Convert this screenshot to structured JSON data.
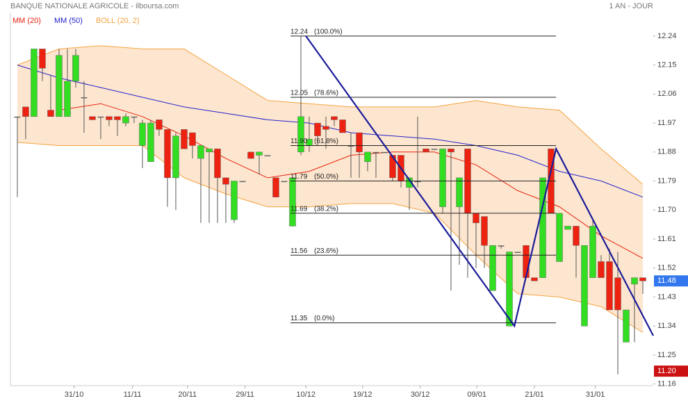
{
  "chart_data": {
    "type": "candlestick",
    "title": "BANQUE NATIONALE AGRICOLE - ilboursa.com",
    "period": "1 AN - JOUR",
    "up_color": "#33dd22",
    "down_color": "#ee2211",
    "xlim": [
      -0.83,
      76.25
    ],
    "ylim": [
      11.155,
      12.313
    ],
    "xticks": [
      {
        "value": 6.8,
        "label": "31/10"
      },
      {
        "value": 13.8,
        "label": "11/11"
      },
      {
        "value": 20.4,
        "label": "20/11"
      },
      {
        "value": 27.3,
        "label": "29/11"
      },
      {
        "value": 34.6,
        "label": "10/12"
      },
      {
        "value": 41.4,
        "label": "19/12"
      },
      {
        "value": 48.3,
        "label": "30/12"
      },
      {
        "value": 55.1,
        "label": "09/01"
      },
      {
        "value": 62,
        "label": "21/01"
      },
      {
        "value": 69.3,
        "label": "31/01"
      }
    ],
    "yticks": [
      12.24,
      12.15,
      12.06,
      11.97,
      11.88,
      11.79,
      {
        "value": 11.7,
        "label": "11.70"
      },
      11.61,
      11.52,
      11.43,
      11.34,
      11.25,
      11.16
    ],
    "open": [
      11.99,
      12.02,
      11.99,
      12.2,
      12.01,
      11.99,
      11.99,
      12.1,
      12.05,
      11.99,
      11.99,
      11.99,
      11.99,
      11.97,
      11.99,
      11.9,
      11.85,
      11.98,
      11.95,
      11.8,
      11.95,
      11.94,
      11.86,
      11.88,
      11.89,
      11.8,
      11.67,
      11.79,
      11.88,
      11.87,
      11.87,
      11.8,
      11.79,
      11.65,
      11.88,
      11.9,
      11.97,
      11.96,
      11.99,
      11.98,
      11.9,
      11.94,
      11.85,
      11.88,
      11.88,
      11.87,
      11.87,
      11.77,
      11.79,
      11.89,
      11.89,
      11.71,
      11.89,
      11.71,
      11.89,
      11.69,
      11.68,
      11.45,
      11.59,
      11.34,
      11.57,
      11.59,
      11.49,
      11.49,
      11.89,
      11.54,
      11.64,
      11.65,
      11.34,
      11.49,
      11.54,
      11.54,
      11.49,
      11.29,
      11.47,
      11.49
    ],
    "high": [
      11.99,
      12.02,
      12.2,
      12.2,
      12.12,
      12.2,
      12.2,
      12.2,
      12.1,
      11.99,
      11.99,
      11.99,
      11.99,
      12.0,
      11.99,
      11.98,
      11.98,
      11.98,
      11.95,
      11.94,
      11.95,
      11.94,
      11.9,
      11.89,
      11.89,
      11.8,
      11.79,
      11.79,
      11.88,
      11.88,
      11.87,
      11.8,
      11.79,
      11.8,
      12.24,
      11.99,
      11.97,
      11.99,
      11.99,
      11.98,
      11.94,
      11.94,
      11.88,
      11.88,
      11.88,
      11.87,
      11.87,
      11.8,
      11.99,
      11.89,
      11.89,
      11.89,
      11.89,
      11.8,
      11.89,
      11.69,
      11.68,
      11.59,
      11.59,
      11.57,
      11.57,
      11.59,
      11.49,
      11.8,
      11.89,
      11.69,
      11.65,
      11.65,
      11.59,
      11.67,
      11.56,
      11.58,
      11.57,
      11.39,
      11.49,
      11.49
    ],
    "low": [
      11.74,
      11.92,
      11.99,
      12.1,
      11.99,
      11.99,
      11.99,
      12.08,
      11.94,
      11.98,
      11.92,
      11.96,
      11.93,
      11.96,
      11.97,
      11.83,
      11.85,
      11.93,
      11.71,
      11.7,
      11.89,
      11.86,
      11.66,
      11.66,
      11.66,
      11.66,
      11.66,
      11.79,
      11.86,
      11.81,
      11.87,
      11.74,
      11.79,
      11.65,
      11.87,
      11.88,
      11.9,
      11.89,
      11.96,
      11.94,
      11.8,
      11.8,
      11.82,
      11.8,
      11.88,
      11.79,
      11.77,
      11.7,
      11.77,
      11.88,
      11.89,
      11.69,
      11.45,
      11.53,
      11.49,
      11.52,
      11.52,
      11.45,
      11.58,
      11.34,
      11.57,
      11.49,
      11.48,
      11.49,
      11.69,
      11.54,
      11.64,
      11.49,
      11.34,
      11.49,
      11.49,
      11.39,
      11.19,
      11.29,
      11.29,
      11.44
    ],
    "close": [
      11.99,
      11.99,
      12.2,
      12.14,
      11.99,
      12.18,
      12.1,
      12.18,
      12.05,
      11.98,
      11.99,
      11.98,
      11.98,
      11.99,
      11.99,
      11.97,
      11.97,
      11.95,
      11.8,
      11.93,
      11.89,
      11.9,
      11.9,
      11.89,
      11.8,
      11.78,
      11.79,
      11.79,
      11.86,
      11.88,
      11.87,
      11.74,
      11.79,
      11.8,
      11.99,
      11.92,
      11.93,
      11.95,
      11.98,
      11.94,
      11.9,
      11.88,
      11.88,
      11.88,
      11.88,
      11.8,
      11.79,
      11.8,
      11.79,
      11.88,
      11.89,
      11.89,
      11.88,
      11.8,
      11.69,
      11.66,
      11.59,
      11.59,
      11.59,
      11.57,
      11.57,
      11.49,
      11.48,
      11.8,
      11.69,
      11.69,
      11.65,
      11.59,
      11.59,
      11.65,
      11.49,
      11.39,
      11.39,
      11.39,
      11.49,
      11.48
    ],
    "series": [
      {
        "name": "MM (20)",
        "color": "#e8220f",
        "x": [
          5,
          10,
          15,
          20,
          25,
          30,
          35,
          40,
          45,
          50,
          55,
          60,
          65,
          70,
          75
        ],
        "values": [
          12.01,
          12.03,
          11.99,
          11.93,
          11.86,
          11.8,
          11.82,
          11.87,
          11.88,
          11.88,
          11.84,
          11.76,
          11.71,
          11.62,
          11.55
        ]
      },
      {
        "name": "MM (50)",
        "color": "#2222cc",
        "x": [
          0,
          5,
          10,
          15,
          20,
          25,
          30,
          35,
          40,
          45,
          50,
          55,
          60,
          65,
          70,
          75
        ],
        "values": [
          12.15,
          12.11,
          12.08,
          12.05,
          12.02,
          12.0,
          11.98,
          11.97,
          11.94,
          11.93,
          11.92,
          11.9,
          11.87,
          11.82,
          11.79,
          11.74
        ]
      }
    ],
    "bollinger": {
      "name": "BOLL (20, 2)",
      "color": "#f5a340",
      "fill": "#fde6cf",
      "x": [
        0,
        5,
        10,
        15,
        20,
        25,
        30,
        35,
        40,
        45,
        50,
        55,
        60,
        65,
        70,
        75
      ],
      "upper": [
        12.15,
        12.2,
        12.21,
        12.2,
        12.2,
        12.12,
        12.04,
        12.03,
        12.02,
        12.02,
        12.02,
        12.04,
        12.02,
        12.01,
        11.89,
        11.78
      ],
      "lower": [
        11.91,
        11.9,
        11.9,
        11.9,
        11.8,
        11.75,
        11.71,
        11.71,
        11.72,
        11.72,
        11.69,
        11.56,
        11.44,
        11.43,
        11.4,
        11.32
      ]
    },
    "trendline": {
      "color": "#1a1a99",
      "x": [
        34.6,
        59.6,
        64.6,
        76.25
      ],
      "values": [
        12.24,
        11.34,
        11.89,
        11.31
      ]
    },
    "fibonacci": [
      {
        "value": 12.24,
        "label": "12.24",
        "ratio": "(100.0%)"
      },
      {
        "value": 12.05,
        "label": "12.05",
        "ratio": "(78.6%)"
      },
      {
        "value": 11.9,
        "label": "11.90",
        "ratio": "(61.8%)"
      },
      {
        "value": 11.79,
        "label": "11.79",
        "ratio": "(50.0%)"
      },
      {
        "value": 11.69,
        "label": "11.69",
        "ratio": "(38.2%)"
      },
      {
        "value": 11.56,
        "label": "11.56",
        "ratio": "(23.6%)"
      },
      {
        "value": 11.35,
        "label": "11.35",
        "ratio": "(0.0%)"
      }
    ],
    "price_tags": [
      {
        "value": 11.48,
        "label": "11.48",
        "color": "#3377ee"
      },
      {
        "value": 11.2,
        "label": "11.20",
        "color": "#cc1111"
      }
    ]
  }
}
